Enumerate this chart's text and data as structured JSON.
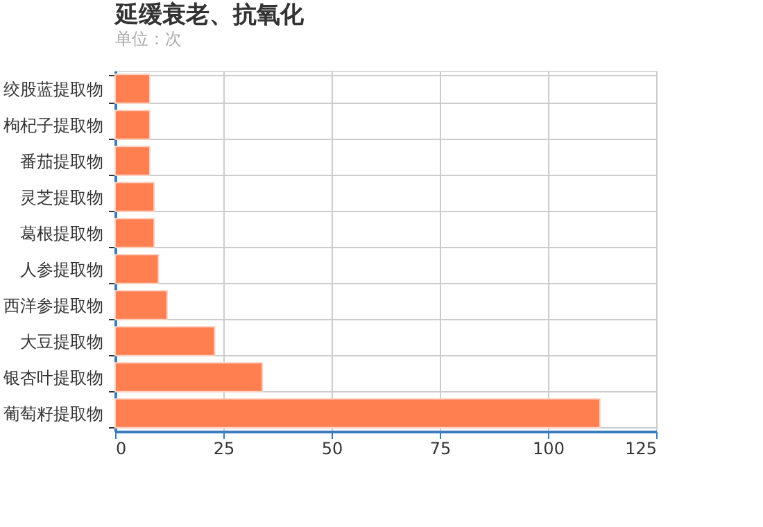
{
  "chart_data": {
    "type": "bar",
    "orientation": "horizontal",
    "title": "延缓衰老、抗氧化",
    "subtitle": "单位：次",
    "categories": [
      "绞股蓝提取物",
      "枸杞子提取物",
      "番茄提取物",
      "灵芝提取物",
      "葛根提取物",
      "人参提取物",
      "西洋参提取物",
      "大豆提取物",
      "银杏叶提取物",
      "葡萄籽提取物"
    ],
    "values": [
      8,
      8,
      8,
      9,
      9,
      10,
      12,
      23,
      34,
      112
    ],
    "color": "#ff7f50",
    "xlim": [
      0,
      125
    ],
    "xticks": [
      0,
      25,
      50,
      75,
      100,
      125
    ],
    "grid": true
  }
}
